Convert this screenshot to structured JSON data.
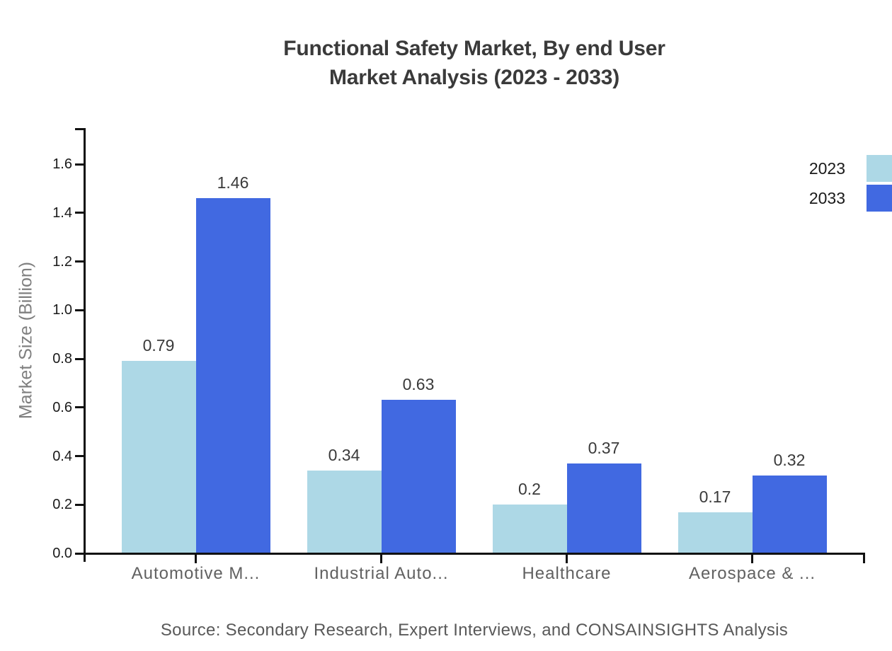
{
  "chart": {
    "title_line1": "Functional Safety Market, By end User",
    "title_line2": "Market Analysis (2023 - 2033)",
    "y_axis_label": "Market Size (Billion)",
    "source": "Source: Secondary Research, Expert Interviews, and CONSAINSIGHTS Analysis"
  },
  "chart_data": {
    "type": "bar",
    "title": "Functional Safety Market, By end User Market Analysis (2023 - 2033)",
    "categories": [
      "Automotive M...",
      "Industrial Auto...",
      "Healthcare",
      "Aerospace & ..."
    ],
    "series": [
      {
        "name": "2023",
        "color": "#ADD8E6",
        "values": [
          0.79,
          0.34,
          0.2,
          0.17
        ]
      },
      {
        "name": "2033",
        "color": "#4169E1",
        "values": [
          1.46,
          0.63,
          0.37,
          0.32
        ]
      }
    ],
    "ylabel": "Market Size (Billion)",
    "xlabel": "",
    "ylim": [
      0,
      1.75
    ],
    "yticks": [
      0.0,
      0.2,
      0.4,
      0.6,
      0.8,
      1.0,
      1.2,
      1.4,
      1.6
    ],
    "grid": false,
    "bar_value_labels": true,
    "legend_position": "upper-right-outside",
    "source": "Source: Secondary Research, Expert Interviews, and CONSAINSIGHTS Analysis"
  },
  "colors": {
    "series_2023": "#ADD8E6",
    "series_2033": "#4169E1",
    "axis": "#111111",
    "title_text": "#3A3A3A",
    "tick_text": "#1A1A1A",
    "category_text": "#616161",
    "ylabel_text": "#7F7F7F",
    "source_text": "#595959",
    "background": "#FFFFFF"
  }
}
